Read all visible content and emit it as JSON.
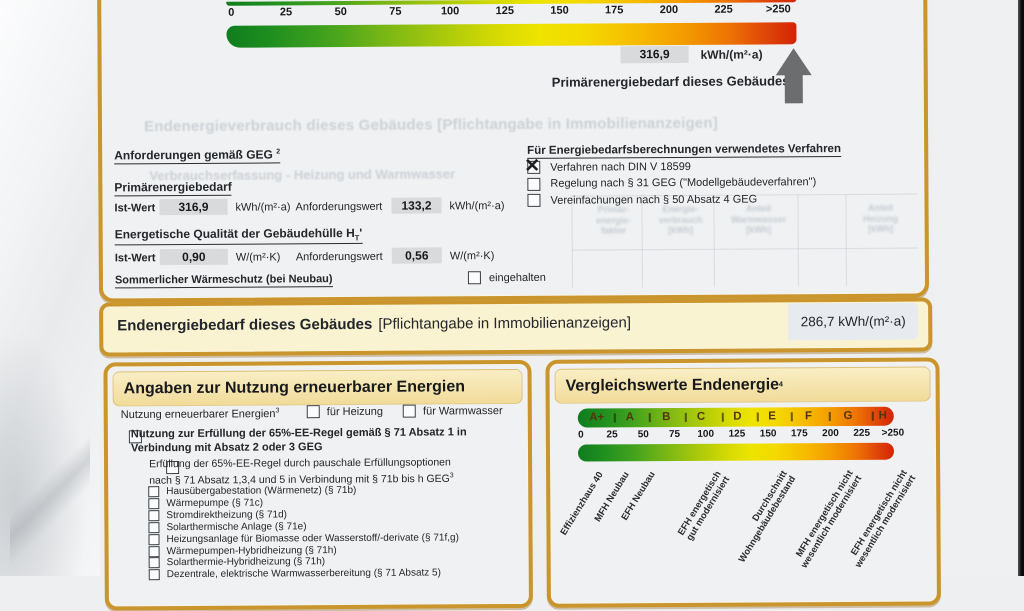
{
  "top_scale": {
    "ticks": [
      "0",
      "25",
      "50",
      "75",
      "100",
      "125",
      "150",
      "175",
      "200",
      "225",
      ">250"
    ],
    "value": "316,9",
    "unit": "kWh/(m²·a)",
    "caption": "Primärenergiebedarf dieses Gebäudes"
  },
  "requirements": {
    "heading": "Anforderungen gemäß GEG",
    "heading_sup": "2",
    "primary_label": "Primärenergiebedarf",
    "ist_label": "Ist-Wert",
    "req_label": "Anforderungswert",
    "primary_ist_value": "316,9",
    "primary_ist_unit": "kWh/(m²·a)",
    "primary_req_value": "133,2",
    "primary_req_unit": "kWh/(m²·a)",
    "envelope_label": "Energetische Qualität der Gebäudehülle H",
    "envelope_sub": "T",
    "envelope_suffix": "'",
    "envelope_ist_value": "0,90",
    "envelope_ist_unit": "W/(m²·K)",
    "envelope_req_value": "0,56",
    "envelope_req_unit": "W/(m²·K)",
    "summer_label": "Sommerlicher Wärmeschutz (bei Neubau)",
    "summer_option": "eingehalten",
    "summer_checked": false
  },
  "method": {
    "heading": "Für Energiebedarfsberechnungen verwendetes Verfahren",
    "options": [
      {
        "label": "Verfahren nach DIN V 18599",
        "checked": true
      },
      {
        "label": "Regelung nach § 31 GEG (\"Modellgebäudeverfahren\")",
        "checked": false
      },
      {
        "label": "Vereinfachungen nach § 50 Absatz 4 GEG",
        "checked": false
      }
    ]
  },
  "end_energy_band": {
    "title": "Endenergiebedarf dieses Gebäudes",
    "title_note": "[Pflichtangabe in Immobilienanzeigen]",
    "value": "286,7 kWh/(m²·a)"
  },
  "renewables": {
    "heading": "Angaben zur Nutzung erneuerbarer Energien",
    "intro_label": "Nutzung erneuerbarer Energien",
    "intro_sup": "3",
    "intro_options": [
      {
        "label": "für Heizung",
        "checked": false
      },
      {
        "label": "für Warmwasser",
        "checked": false
      }
    ],
    "rule_lines": [
      "Nutzung zur Erfüllung der 65%-EE-Regel gemäß § 71 Absatz 1 in",
      "Verbindung mit Absatz 2 oder 3 GEG"
    ],
    "rule_checked": false,
    "flat_lines": [
      "Erfüllung der 65%-EE-Regel durch pauschale Erfüllungsoptionen",
      "nach § 71 Absatz 1,3,4 und 5 in Verbindung mit § 71b bis h GEG"
    ],
    "flat_sup": "3",
    "flat_checked": false,
    "items": [
      "Hausübergabestation (Wärmenetz) (§ 71b)",
      "Wärmepumpe (§ 71c)",
      "Stromdirektheizung (§ 71d)",
      "Solarthermische Anlage (§ 71e)",
      "Heizungsanlage für Biomasse oder Wasserstoff/-derivate (§ 71f,g)",
      "Wärmepumpen-Hybridheizung (§ 71h)",
      "Solarthermie-Hybridheizung (§ 71h)",
      "Dezentrale, elektrische Warmwasserbereitung (§ 71 Absatz 5)"
    ]
  },
  "comparison": {
    "heading": "Vergleichswerte Endenergie",
    "heading_sup": "4",
    "classes": [
      "A+",
      "A",
      "B",
      "C",
      "D",
      "E",
      "F",
      "G",
      "H"
    ],
    "ticks": [
      "0",
      "25",
      "50",
      "75",
      "100",
      "125",
      "150",
      "175",
      "200",
      "225",
      ">250"
    ],
    "reference_labels": [
      [
        "Effizienzhaus 40"
      ],
      [
        "MFH Neubau"
      ],
      [
        "EFH Neubau"
      ],
      [
        "EFH energetisch",
        "gut modernisiert"
      ],
      [
        "Durchschnitt",
        "Wohngebäudebestand"
      ],
      [
        "MFH energetisch nicht",
        "wesentlich modernisiert"
      ],
      [
        "EFH energetisch nicht",
        "wesentlich modernisiert"
      ]
    ]
  },
  "ghost": {
    "line1": "Endenergieverbrauch dieses Gebäudes [Pflichtangabe in Immobilienanzeigen]",
    "line2": "Verbrauchserfassung - Heizung und Warmwasser",
    "table_headers": [
      [
        "Primär-",
        "energie-",
        "faktor"
      ],
      [
        "Energie-",
        "verbrauch",
        "[kWh]"
      ],
      [
        "Anteil",
        "Warmwasser",
        "[kWh]"
      ],
      [
        "Anteil",
        "Heizung",
        "[kWh]"
      ]
    ]
  },
  "colors": {
    "gold_border": "#c9952c",
    "header_fill": "#f6e6ad",
    "band_fill": "#faf3d2",
    "value_box": "#d8dadb",
    "arrow_gray": "#6b6d6f",
    "scale_green": "#0f7d1e",
    "scale_red": "#d32405"
  }
}
